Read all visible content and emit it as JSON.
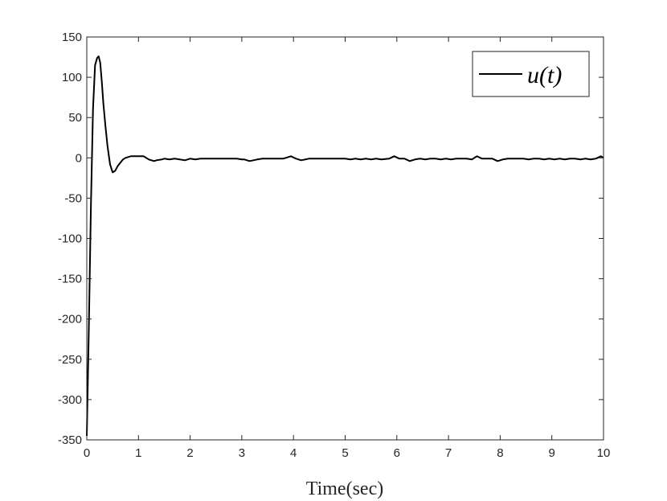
{
  "chart_data": {
    "type": "line",
    "xlabel": "Time(sec)",
    "ylabel": "",
    "title": "",
    "xlim": [
      0,
      10
    ],
    "ylim": [
      -350,
      150
    ],
    "xticks": [
      0,
      1,
      2,
      3,
      4,
      5,
      6,
      7,
      8,
      9,
      10
    ],
    "yticks": [
      150,
      100,
      50,
      0,
      -50,
      -100,
      -150,
      -200,
      -250,
      -300,
      -350
    ],
    "legend_position": "top-right",
    "grid": false,
    "series": [
      {
        "name": "u(t)",
        "color": "#000000",
        "x": [
          0,
          0.04,
          0.08,
          0.12,
          0.16,
          0.2,
          0.23,
          0.26,
          0.29,
          0.32,
          0.36,
          0.4,
          0.45,
          0.5,
          0.55,
          0.6,
          0.65,
          0.7,
          0.75,
          0.8,
          0.85,
          0.9,
          0.95,
          1.0,
          1.1,
          1.2,
          1.3,
          1.35,
          1.45,
          1.5,
          1.6,
          1.7,
          1.8,
          1.9,
          2.0,
          2.1,
          2.2,
          2.3,
          2.4,
          2.5,
          2.6,
          2.7,
          2.8,
          2.9,
          3.0,
          3.05,
          3.15,
          3.3,
          3.4,
          3.5,
          3.6,
          3.7,
          3.8,
          3.9,
          3.95,
          4.05,
          4.15,
          4.3,
          4.4,
          4.5,
          4.6,
          4.7,
          4.8,
          4.9,
          5.0,
          5.1,
          5.2,
          5.3,
          5.4,
          5.5,
          5.6,
          5.7,
          5.85,
          5.95,
          6.05,
          6.15,
          6.25,
          6.35,
          6.45,
          6.55,
          6.65,
          6.75,
          6.85,
          6.95,
          7.05,
          7.15,
          7.25,
          7.35,
          7.45,
          7.55,
          7.65,
          7.75,
          7.85,
          7.95,
          8.05,
          8.15,
          8.25,
          8.35,
          8.45,
          8.55,
          8.65,
          8.75,
          8.85,
          8.95,
          9.05,
          9.15,
          9.25,
          9.35,
          9.45,
          9.55,
          9.65,
          9.75,
          9.85,
          9.95,
          10.0
        ],
        "y": [
          -345,
          -210,
          -60,
          60,
          115,
          124,
          126,
          118,
          95,
          68,
          40,
          15,
          -8,
          -18,
          -16,
          -10,
          -6,
          -2,
          0,
          1,
          2,
          2,
          2,
          2,
          2,
          -2,
          -4,
          -3,
          -2,
          -1,
          -2,
          -1,
          -2,
          -3,
          -1,
          -2,
          -1,
          -1,
          -1,
          -1,
          -1,
          -1,
          -1,
          -1,
          -2,
          -2,
          -4,
          -2,
          -1,
          -1,
          -1,
          -1,
          -1,
          1,
          2,
          -1,
          -3,
          -1,
          -1,
          -1,
          -1,
          -1,
          -1,
          -1,
          -1,
          -2,
          -1,
          -2,
          -1,
          -2,
          -1,
          -2,
          -1,
          2,
          -1,
          -1,
          -4,
          -2,
          -1,
          -2,
          -1,
          -1,
          -2,
          -1,
          -2,
          -1,
          -1,
          -1,
          -2,
          2,
          -1,
          -1,
          -1,
          -4,
          -2,
          -1,
          -1,
          -1,
          -1,
          -2,
          -1,
          -1,
          -2,
          -1,
          -2,
          -1,
          -2,
          -1,
          -1,
          -2,
          -1,
          -2,
          -1,
          2,
          0
        ]
      }
    ]
  }
}
